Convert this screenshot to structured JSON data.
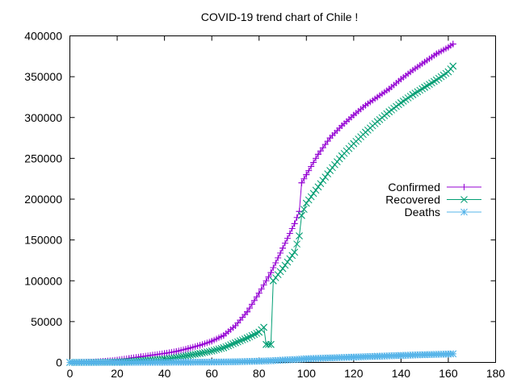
{
  "chart_data": {
    "type": "line",
    "title": "COVID-19 trend chart of Chile !",
    "xlabel": "",
    "ylabel": "",
    "xlim": [
      0,
      180
    ],
    "ylim": [
      0,
      400000
    ],
    "x_ticks": [
      0,
      20,
      40,
      60,
      80,
      100,
      120,
      140,
      160,
      180
    ],
    "y_ticks": [
      0,
      50000,
      100000,
      150000,
      200000,
      250000,
      300000,
      350000,
      400000
    ],
    "grid": false,
    "legend_position": "right",
    "series": [
      {
        "name": "Confirmed",
        "color": "#9400d3",
        "marker": "plus",
        "points": [
          [
            0,
            0
          ],
          [
            5,
            100
          ],
          [
            10,
            500
          ],
          [
            15,
            1500
          ],
          [
            20,
            3000
          ],
          [
            25,
            5000
          ],
          [
            30,
            7000
          ],
          [
            35,
            9000
          ],
          [
            40,
            11000
          ],
          [
            45,
            13500
          ],
          [
            50,
            17000
          ],
          [
            55,
            21000
          ],
          [
            60,
            26000
          ],
          [
            65,
            33000
          ],
          [
            70,
            45000
          ],
          [
            75,
            62000
          ],
          [
            80,
            85000
          ],
          [
            85,
            110000
          ],
          [
            90,
            140000
          ],
          [
            95,
            170000
          ],
          [
            97,
            185000
          ],
          [
            98,
            220000
          ],
          [
            100,
            230000
          ],
          [
            105,
            255000
          ],
          [
            110,
            275000
          ],
          [
            115,
            290000
          ],
          [
            120,
            303000
          ],
          [
            125,
            315000
          ],
          [
            130,
            325000
          ],
          [
            135,
            335000
          ],
          [
            140,
            347000
          ],
          [
            145,
            358000
          ],
          [
            150,
            368000
          ],
          [
            155,
            378000
          ],
          [
            160,
            386000
          ],
          [
            162,
            390000
          ]
        ]
      },
      {
        "name": "Recovered",
        "color": "#009e73",
        "marker": "cross",
        "points": [
          [
            0,
            0
          ],
          [
            10,
            100
          ],
          [
            20,
            500
          ],
          [
            30,
            2000
          ],
          [
            40,
            4000
          ],
          [
            45,
            6000
          ],
          [
            50,
            8500
          ],
          [
            55,
            11000
          ],
          [
            60,
            14000
          ],
          [
            65,
            18000
          ],
          [
            70,
            24000
          ],
          [
            75,
            30000
          ],
          [
            80,
            37000
          ],
          [
            82,
            43000
          ],
          [
            83,
            22000
          ],
          [
            85,
            22000
          ],
          [
            86,
            100000
          ],
          [
            90,
            115000
          ],
          [
            95,
            135000
          ],
          [
            97,
            155000
          ],
          [
            98,
            180000
          ],
          [
            100,
            195000
          ],
          [
            105,
            215000
          ],
          [
            110,
            235000
          ],
          [
            115,
            253000
          ],
          [
            120,
            268000
          ],
          [
            125,
            282000
          ],
          [
            130,
            295000
          ],
          [
            135,
            307000
          ],
          [
            140,
            318000
          ],
          [
            145,
            328000
          ],
          [
            150,
            337000
          ],
          [
            155,
            346000
          ],
          [
            160,
            356000
          ],
          [
            162,
            363000
          ]
        ]
      },
      {
        "name": "Deaths",
        "color": "#56b4e9",
        "marker": "star",
        "points": [
          [
            0,
            0
          ],
          [
            20,
            20
          ],
          [
            40,
            150
          ],
          [
            50,
            250
          ],
          [
            60,
            450
          ],
          [
            70,
            800
          ],
          [
            80,
            1500
          ],
          [
            85,
            2000
          ],
          [
            90,
            2800
          ],
          [
            95,
            3500
          ],
          [
            100,
            4500
          ],
          [
            110,
            5500
          ],
          [
            120,
            6500
          ],
          [
            130,
            7500
          ],
          [
            140,
            8500
          ],
          [
            150,
            9500
          ],
          [
            160,
            10200
          ],
          [
            162,
            10500
          ]
        ]
      }
    ]
  }
}
